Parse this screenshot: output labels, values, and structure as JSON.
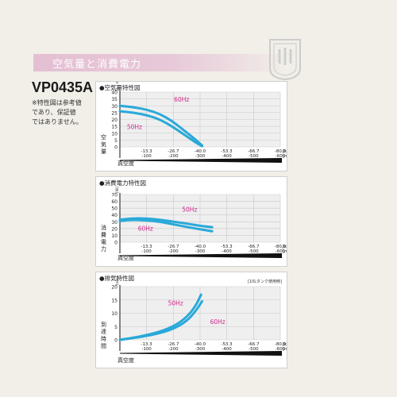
{
  "header": {
    "section_title": "空気量と消費電力",
    "model": "VP0435A",
    "note": "※特性図は参考値\nであり、保証値\nではありません。"
  },
  "colors": {
    "curve": "#29a9d8",
    "label": "#d0268c",
    "grid": "#c9c9c9",
    "plot_bg": "#efefef",
    "axis": "#111111"
  },
  "chart_data": [
    {
      "type": "line",
      "title": "●空気量特性図",
      "ylabel": "空気量",
      "yunit": "[L / min]",
      "xlabel": "真空度",
      "ylim": [
        0,
        40
      ],
      "yticks": [
        0,
        5,
        10,
        15,
        20,
        25,
        30,
        35,
        40
      ],
      "xlim": [
        0,
        -80
      ],
      "xticks": [
        -13.3,
        -26.7,
        -40.0,
        -53.3,
        -66.7,
        -80.0
      ],
      "xtick_labels_kpa": [
        "-13.3",
        "-26.7",
        "-40.0",
        "-53.3",
        "-66.7",
        "-80.0"
      ],
      "xtick_labels_mmhg": [
        "-100",
        "-200",
        "-300",
        "-400",
        "-500",
        "-600"
      ],
      "unit_kpa": "[kPa]",
      "unit_mmhg": "[mmHg]",
      "grid": true,
      "series": [
        {
          "name": "60Hz",
          "label_pos": [
            -27,
            33
          ],
          "x": [
            0,
            -7,
            -14,
            -20,
            -26,
            -32,
            -38,
            -41
          ],
          "y": [
            30,
            29,
            27,
            24,
            19,
            12,
            5,
            1
          ]
        },
        {
          "name": "50Hz",
          "label_pos": [
            -3.5,
            13
          ],
          "x": [
            0,
            -7,
            -14,
            -20,
            -26,
            -32,
            -38,
            -41
          ],
          "y": [
            26,
            25,
            23,
            20,
            15,
            9,
            3,
            0.5
          ]
        }
      ]
    },
    {
      "type": "line",
      "title": "●消費電力特性図",
      "ylabel": "消費電力",
      "yunit": "[W]",
      "xlabel": "真空度",
      "ylim": [
        0,
        70
      ],
      "yticks": [
        0,
        10,
        20,
        30,
        40,
        50,
        60,
        70
      ],
      "xlim": [
        0,
        -80
      ],
      "xticks": [
        -13.3,
        -26.7,
        -40.0,
        -53.3,
        -66.7,
        -80.0
      ],
      "xtick_labels_kpa": [
        "-13.3",
        "-26.7",
        "-40.0",
        "-53.3",
        "-66.7",
        "-80.0"
      ],
      "xtick_labels_mmhg": [
        "-100",
        "-200",
        "-300",
        "-400",
        "-500",
        "-600"
      ],
      "unit_kpa": "[kPa]",
      "unit_mmhg": "[mmHg]",
      "grid": true,
      "series": [
        {
          "name": "50Hz",
          "label_pos": [
            -31,
            45
          ],
          "x": [
            0,
            -6,
            -13,
            -20,
            -27,
            -34,
            -40,
            -46
          ],
          "y": [
            33,
            35,
            35,
            33,
            30,
            27,
            24,
            22
          ]
        },
        {
          "name": "60Hz",
          "label_pos": [
            -9,
            17
          ],
          "x": [
            0,
            -6,
            -13,
            -20,
            -27,
            -34,
            -40,
            -46
          ],
          "y": [
            31,
            33,
            32,
            30,
            26,
            22,
            19,
            16
          ]
        }
      ]
    },
    {
      "type": "line",
      "title": "●排気特性図",
      "ylabel": "到達時間",
      "yunit": "[sec]",
      "xlabel": "真空度",
      "condition": "[10Lタンク使用時]",
      "ylim": [
        0,
        20
      ],
      "yticks": [
        0,
        5,
        10,
        15,
        20
      ],
      "xlim": [
        0,
        -80
      ],
      "xticks": [
        -13.3,
        -26.7,
        -40.0,
        -53.3,
        -66.7,
        -80.0
      ],
      "xtick_labels_kpa": [
        "-13.3",
        "-26.7",
        "-40.0",
        "-53.3",
        "-66.7",
        "-80.0"
      ],
      "xtick_labels_mmhg": [
        "-100",
        "-200",
        "-300",
        "-400",
        "-500",
        "-600"
      ],
      "unit_kpa": "[kPa]",
      "unit_mmhg": "[mmHg]",
      "grid": true,
      "series": [
        {
          "name": "50Hz",
          "label_pos": [
            -24,
            13
          ],
          "x": [
            0,
            -10,
            -20,
            -28,
            -34,
            -38,
            -40.5
          ],
          "y": [
            0,
            1.2,
            3,
            5.5,
            9,
            13,
            17
          ]
        },
        {
          "name": "60Hz",
          "label_pos": [
            -45,
            6
          ],
          "x": [
            0,
            -10,
            -20,
            -28,
            -34,
            -38,
            -41
          ],
          "y": [
            0,
            1,
            2.5,
            4.5,
            7.5,
            11,
            14.5
          ]
        }
      ]
    }
  ]
}
